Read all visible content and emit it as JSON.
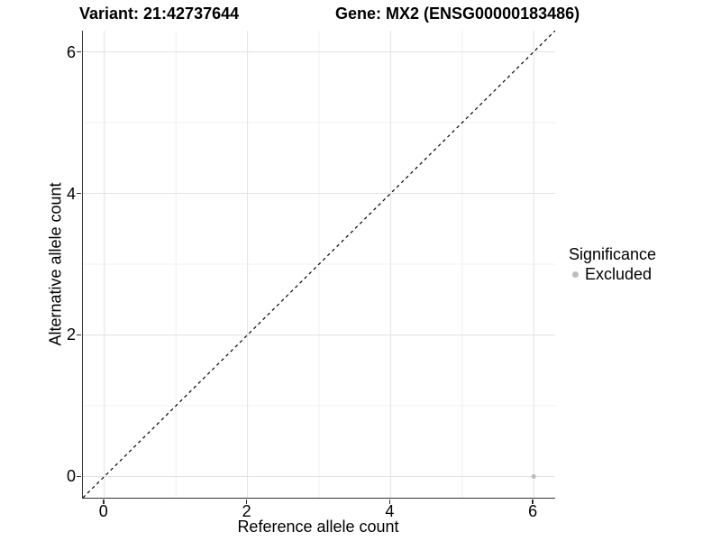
{
  "chart_data": {
    "type": "scatter",
    "titles": {
      "left": "Variant: 21:42737644",
      "right": "Gene: MX2 (ENSG00000183486)"
    },
    "xlabel": "Reference allele count",
    "ylabel": "Alternative allele count",
    "xlim": [
      -0.3,
      6.3
    ],
    "ylim": [
      -0.3,
      6.3
    ],
    "x_ticks": [
      0,
      2,
      4,
      6
    ],
    "y_ticks": [
      0,
      2,
      4,
      6
    ],
    "minor_gridlines": [
      1,
      3,
      5
    ],
    "grid": "on",
    "identity_line": {
      "style": "dashed",
      "from": -0.3,
      "to": 6.3
    },
    "series": [
      {
        "name": "Excluded",
        "points": [
          {
            "x": 6,
            "y": 0
          }
        ]
      }
    ],
    "legend": {
      "title": "Significance",
      "position": "right",
      "items": [
        {
          "label": "Excluded",
          "color": "#bdbdbd"
        }
      ]
    },
    "colors": {
      "background": "#ffffff",
      "axis_line": "#333333",
      "grid_major": "#e2e2e2",
      "grid_minor": "#f0f0f0",
      "identity_line": "#000000",
      "point": "#bdbdbd",
      "text": "#000000"
    }
  }
}
